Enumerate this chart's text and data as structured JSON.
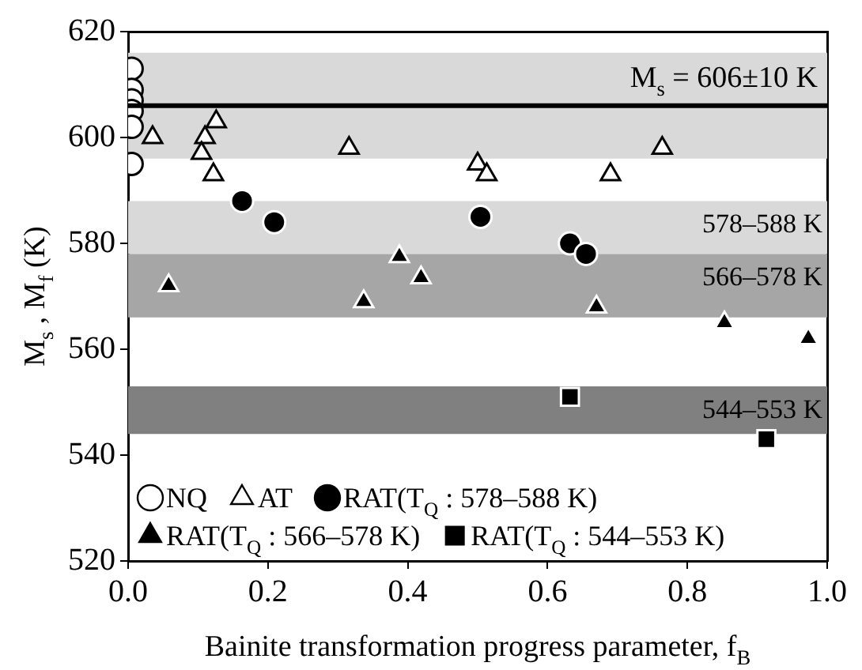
{
  "chart_data": {
    "type": "scatter",
    "xlabel": "Bainite transformation progress parameter, f$_{B}$",
    "ylabel": "M$_{s}$ , M$_{f}$ (K)",
    "xlim": [
      0,
      1
    ],
    "xticks": [
      {
        "value": 0,
        "label": "0.0"
      },
      {
        "value": 0.2,
        "label": "0.2"
      },
      {
        "value": 0.4,
        "label": "0.4"
      },
      {
        "value": 0.6,
        "label": "0.6"
      },
      {
        "value": 0.8,
        "label": "0.8"
      },
      {
        "value": 1,
        "label": "1.0"
      }
    ],
    "ylim": [
      520,
      620
    ],
    "yticks": [
      520,
      540,
      560,
      580,
      600,
      620
    ],
    "grid": false,
    "legend": "bottom left",
    "ref_lines": [
      {
        "axis": "y",
        "value": 606,
        "label": "M$_{s}$ = 606±10 K",
        "color": "#000000"
      }
    ],
    "bands": [
      {
        "axis": "y",
        "from": 596,
        "to": 616,
        "color": "#d9d9d9"
      },
      {
        "axis": "y",
        "from": 578,
        "to": 588,
        "label": "578–588 K",
        "color": "#d9d9d9"
      },
      {
        "axis": "y",
        "from": 566,
        "to": 578,
        "label": "566–578 K",
        "color": "#a6a6a6"
      },
      {
        "axis": "y",
        "from": 544,
        "to": 553,
        "label": "544–553 K",
        "color": "#808080"
      }
    ],
    "series": [
      {
        "name": "NQ",
        "color": "#ffffff",
        "marker": "circle",
        "x": [
          0.005,
          0.005,
          0.005,
          0.005,
          0.005,
          0.005
        ],
        "values": [
          613,
          609,
          607,
          605,
          602,
          595
        ]
      },
      {
        "name": "AT",
        "color": "#ffffff",
        "marker": "triangle",
        "x": [
          0.035,
          0.11,
          0.126,
          0.105,
          0.122,
          0.316,
          0.5,
          0.513,
          0.69,
          0.764
        ],
        "values": [
          600,
          600,
          603,
          597,
          593,
          598,
          595,
          593,
          593,
          598
        ]
      },
      {
        "name": "RAT(T$_{Q}$ : 578–588 K)",
        "color": "#000000",
        "marker": "circle",
        "x": [
          0.163,
          0.209,
          0.504,
          0.632,
          0.655
        ],
        "values": [
          588,
          584,
          585,
          580,
          578
        ]
      },
      {
        "name": "RAT(T$_{Q}$ : 566–578 K)",
        "color": "#000000",
        "marker": "triangle",
        "x": [
          0.058,
          0.337,
          0.388,
          0.419,
          0.67,
          0.853,
          0.973
        ],
        "values": [
          572,
          569,
          577.5,
          573.5,
          568,
          565,
          562
        ]
      },
      {
        "name": "RAT(T$_{Q}$ : 544–553 K)",
        "color": "#000000",
        "marker": "square",
        "x": [
          0.632,
          0.913
        ],
        "values": [
          551,
          543
        ]
      }
    ]
  }
}
